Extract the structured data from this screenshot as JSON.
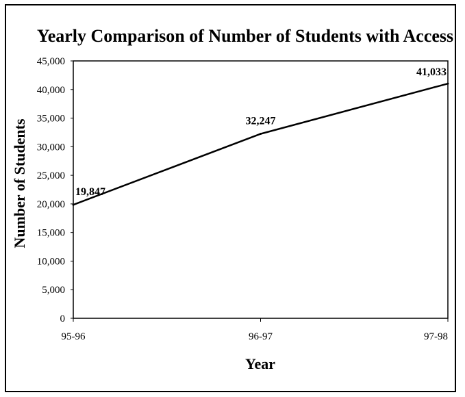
{
  "chart_data": {
    "type": "line",
    "title": "Yearly Comparison of Number of Students with Access",
    "xlabel": "Year",
    "ylabel": "Number of Students",
    "categories": [
      "95-96",
      "96-97",
      "97-98"
    ],
    "series": [
      {
        "values": [
          19847,
          32247,
          41033
        ]
      }
    ],
    "data_labels": [
      "19,847",
      "32,247",
      "41,033"
    ],
    "ylim": [
      0,
      45000
    ],
    "y_ticks": [
      0,
      5000,
      10000,
      15000,
      20000,
      25000,
      30000,
      35000,
      40000,
      45000
    ],
    "y_tick_labels": [
      "0",
      "5,000",
      "10,000",
      "15,000",
      "20,000",
      "25,000",
      "30,000",
      "35,000",
      "40,000",
      "45,000"
    ],
    "grid": false,
    "legend": "none",
    "line_color": "#000000"
  }
}
